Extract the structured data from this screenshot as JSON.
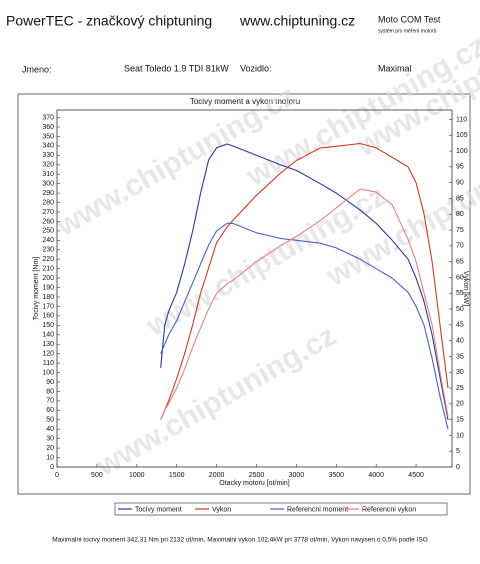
{
  "header": {
    "brand": "PowerTEC - značkový chiptuning",
    "url": "www.chiptuning.cz",
    "test": "Moto COM Test",
    "test_sub": "systém pro měření motorů",
    "name_label": "Jmeno:",
    "car": "Seat Toledo 1.9 TDI 81kW",
    "vehicle_label": "Vozidlo:",
    "mode": "Maximal",
    "watermark": "www.chiptuning.cz",
    "footer": "Maximalni tocivy moment 342,31 Nm pri 2132 ot/min,  Maximalni vykon 102,4kW pri 3778 ot/min,  Vykon navysen o 0,5% podle ISO"
  },
  "chart_data": {
    "type": "line",
    "title": "Tocivy moment a vykon motoru",
    "x_label": "Otacky motoru [ot/min]",
    "y_label": "Tocivy moment [Nm]",
    "y2_label": "Vykon [kW]",
    "x": [
      1300,
      1350,
      1400,
      1500,
      1600,
      1700,
      1800,
      1900,
      2000,
      2132,
      2200,
      2500,
      2800,
      3000,
      3300,
      3500,
      3800,
      4000,
      4200,
      4400,
      4500,
      4600,
      4700,
      4800,
      4900
    ],
    "series": [
      {
        "name": "Tocivy moment",
        "color": "#2b3a9c",
        "values": [
          105,
          150,
          165,
          185,
          215,
          250,
          290,
          325,
          338,
          342,
          340,
          330,
          320,
          314,
          300,
          290,
          272,
          258,
          240,
          220,
          200,
          175,
          140,
          95,
          50
        ]
      },
      {
        "name": "Vykon",
        "color": "#d23a22",
        "axis": "y2",
        "values": [
          15,
          18,
          21,
          28,
          36,
          45,
          55,
          63,
          71,
          76,
          78,
          86,
          93,
          97,
          101,
          101.5,
          102.4,
          101,
          98,
          95,
          90,
          80,
          65,
          45,
          25
        ]
      },
      {
        "name": "Referencni moment",
        "color": "#4a62c4",
        "values": [
          120,
          130,
          140,
          155,
          175,
          195,
          215,
          235,
          250,
          258,
          258,
          248,
          242,
          240,
          237,
          232,
          220,
          210,
          200,
          185,
          170,
          150,
          115,
          75,
          40
        ]
      },
      {
        "name": "Referencni vykon",
        "color": "#e5808c",
        "axis": "y2",
        "values": [
          15,
          18,
          20,
          25,
          31,
          38,
          44,
          50,
          55,
          58,
          59,
          65,
          70,
          73,
          78,
          82,
          88,
          87,
          83,
          72,
          65,
          55,
          45,
          30,
          16
        ]
      }
    ],
    "xlim": [
      0,
      4950
    ],
    "xticks": [
      0,
      500,
      1000,
      1500,
      2000,
      2500,
      3000,
      3500,
      4000,
      4500
    ],
    "ylim": [
      0,
      378
    ],
    "yticks": [
      0,
      10,
      20,
      30,
      40,
      50,
      60,
      70,
      80,
      90,
      100,
      110,
      120,
      130,
      140,
      150,
      160,
      170,
      180,
      190,
      200,
      210,
      220,
      230,
      240,
      250,
      260,
      270,
      280,
      290,
      300,
      310,
      320,
      330,
      340,
      350,
      360,
      370
    ],
    "y2lim": [
      0,
      113
    ],
    "y2ticks": [
      0,
      5,
      10,
      15,
      20,
      25,
      30,
      35,
      40,
      45,
      50,
      55,
      60,
      65,
      70,
      75,
      80,
      85,
      90,
      95,
      100,
      105,
      110
    ],
    "grid": false
  }
}
